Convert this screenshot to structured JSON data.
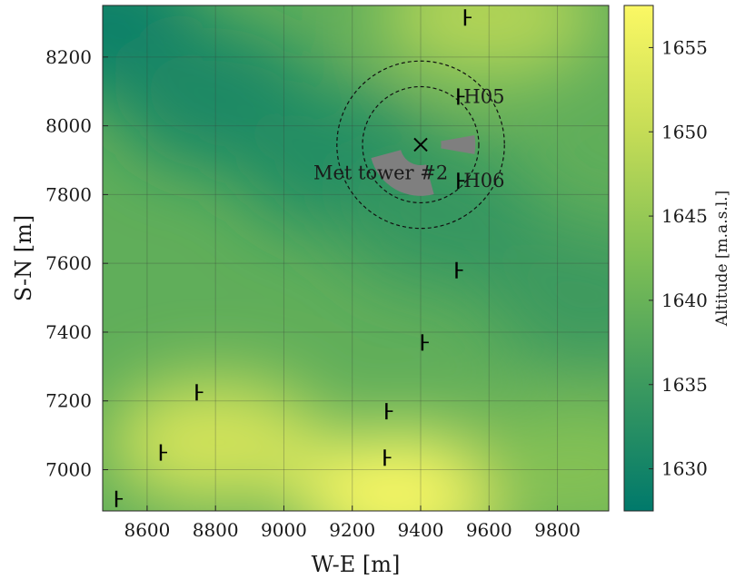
{
  "chart_data": {
    "type": "heatmap",
    "title": "",
    "xlabel": "W-E [m]",
    "ylabel": "S-N [m]",
    "xlim": [
      8470,
      9950
    ],
    "ylim": [
      6880,
      8350
    ],
    "x_ticks": [
      8600,
      8800,
      9000,
      9200,
      9400,
      9600,
      9800
    ],
    "y_ticks": [
      7000,
      7200,
      7400,
      7600,
      7800,
      8000,
      8200
    ],
    "grid": true,
    "colorbar": {
      "label": "Altitude [m.a.s.l.]",
      "range": [
        1627.5,
        1657.5
      ],
      "ticks": [
        1630,
        1635,
        1640,
        1645,
        1650,
        1655
      ],
      "colormap": [
        "#00796b",
        "#3c9a5f",
        "#7fbf55",
        "#c5dc56",
        "#fbf864"
      ]
    },
    "terrain_lows": [
      {
        "x": 8470,
        "y": 8300,
        "alt": 1629
      },
      {
        "x": 8800,
        "y": 8080,
        "alt": 1631
      },
      {
        "x": 9150,
        "y": 7900,
        "alt": 1632
      },
      {
        "x": 9450,
        "y": 7740,
        "alt": 1634
      },
      {
        "x": 9900,
        "y": 7500,
        "alt": 1635
      }
    ],
    "terrain_highs": [
      {
        "x": 9350,
        "y": 6930,
        "alt": 1657
      },
      {
        "x": 8800,
        "y": 7080,
        "alt": 1652
      },
      {
        "x": 9600,
        "y": 8320,
        "alt": 1648
      },
      {
        "x": 9850,
        "y": 7000,
        "alt": 1643
      }
    ],
    "turbines": [
      {
        "x": 8510,
        "y": 6915,
        "label": ""
      },
      {
        "x": 8640,
        "y": 7050,
        "label": ""
      },
      {
        "x": 8745,
        "y": 7225,
        "label": ""
      },
      {
        "x": 9295,
        "y": 7035,
        "label": ""
      },
      {
        "x": 9300,
        "y": 7170,
        "label": ""
      },
      {
        "x": 9405,
        "y": 7370,
        "label": ""
      },
      {
        "x": 9505,
        "y": 7580,
        "label": ""
      },
      {
        "x": 9510,
        "y": 7840,
        "label": "H06"
      },
      {
        "x": 9510,
        "y": 8085,
        "label": "H05"
      },
      {
        "x": 9530,
        "y": 8315,
        "label": ""
      }
    ],
    "met_tower": {
      "x": 9400,
      "y": 7945,
      "label": "Met tower #2"
    },
    "range_circles_m": [
      170,
      245
    ],
    "sectors": [
      {
        "from_deg": 165,
        "to_deg": 255,
        "r_inner_m": 60,
        "r_outer_m": 150
      },
      {
        "from_deg": 80,
        "to_deg": 100,
        "r_inner_m": 60,
        "r_outer_m": 160
      }
    ]
  }
}
